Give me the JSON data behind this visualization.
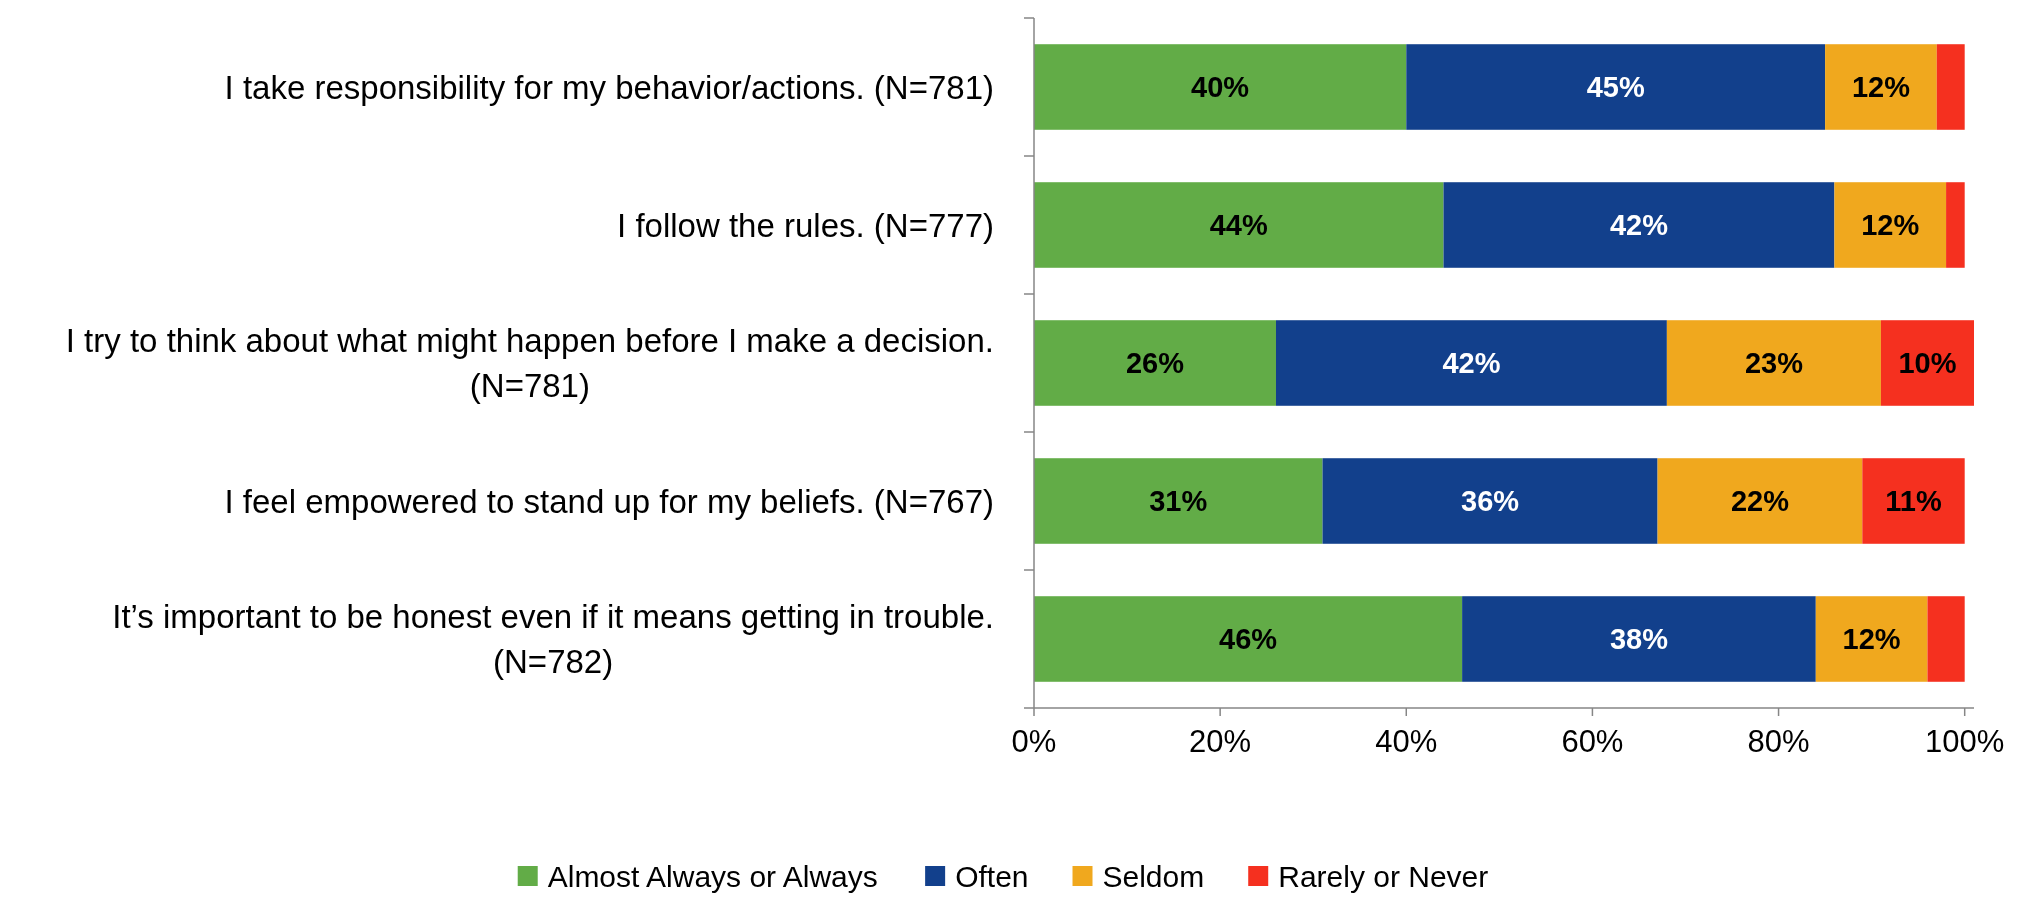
{
  "chart_data": {
    "type": "bar",
    "orientation": "horizontal",
    "stacked": true,
    "categories": [
      "I take responsibility for my behavior/actions. (N=781)",
      "I follow the rules. (N=777)",
      "I try to think about what might happen before I make a decision. (N=781)",
      "I feel empowered to stand up for my beliefs. (N=767)",
      "It’s important to be honest even if it means getting in trouble. (N=782)"
    ],
    "series": [
      {
        "name": "Almost Always or Always",
        "color": "#62ac47",
        "values": [
          40,
          44,
          26,
          31,
          46
        ],
        "value_labels": [
          "40%",
          "44%",
          "26%",
          "31%",
          "46%"
        ]
      },
      {
        "name": "Often",
        "color": "#12408c",
        "values": [
          45,
          42,
          42,
          36,
          38
        ],
        "value_labels": [
          "45%",
          "42%",
          "42%",
          "36%",
          "38%"
        ]
      },
      {
        "name": "Seldom",
        "color": "#f0a81e",
        "values": [
          12,
          12,
          23,
          22,
          12
        ],
        "value_labels": [
          "12%",
          "12%",
          "23%",
          "22%",
          "12%"
        ]
      },
      {
        "name": "Rarely or Never",
        "color": "#f5301f",
        "values": [
          3,
          2,
          10,
          11,
          4
        ],
        "value_labels": [
          null,
          null,
          "10%",
          "11%",
          null
        ]
      }
    ],
    "xlim": [
      0,
      101
    ],
    "xticks": [
      {
        "value": 0,
        "label": "0%"
      },
      {
        "value": 20,
        "label": "20%"
      },
      {
        "value": 40,
        "label": "40%"
      },
      {
        "value": 60,
        "label": "60%"
      },
      {
        "value": 80,
        "label": "80%"
      },
      {
        "value": 100,
        "label": "100%"
      }
    ],
    "grid": false,
    "legend": "bottom"
  }
}
